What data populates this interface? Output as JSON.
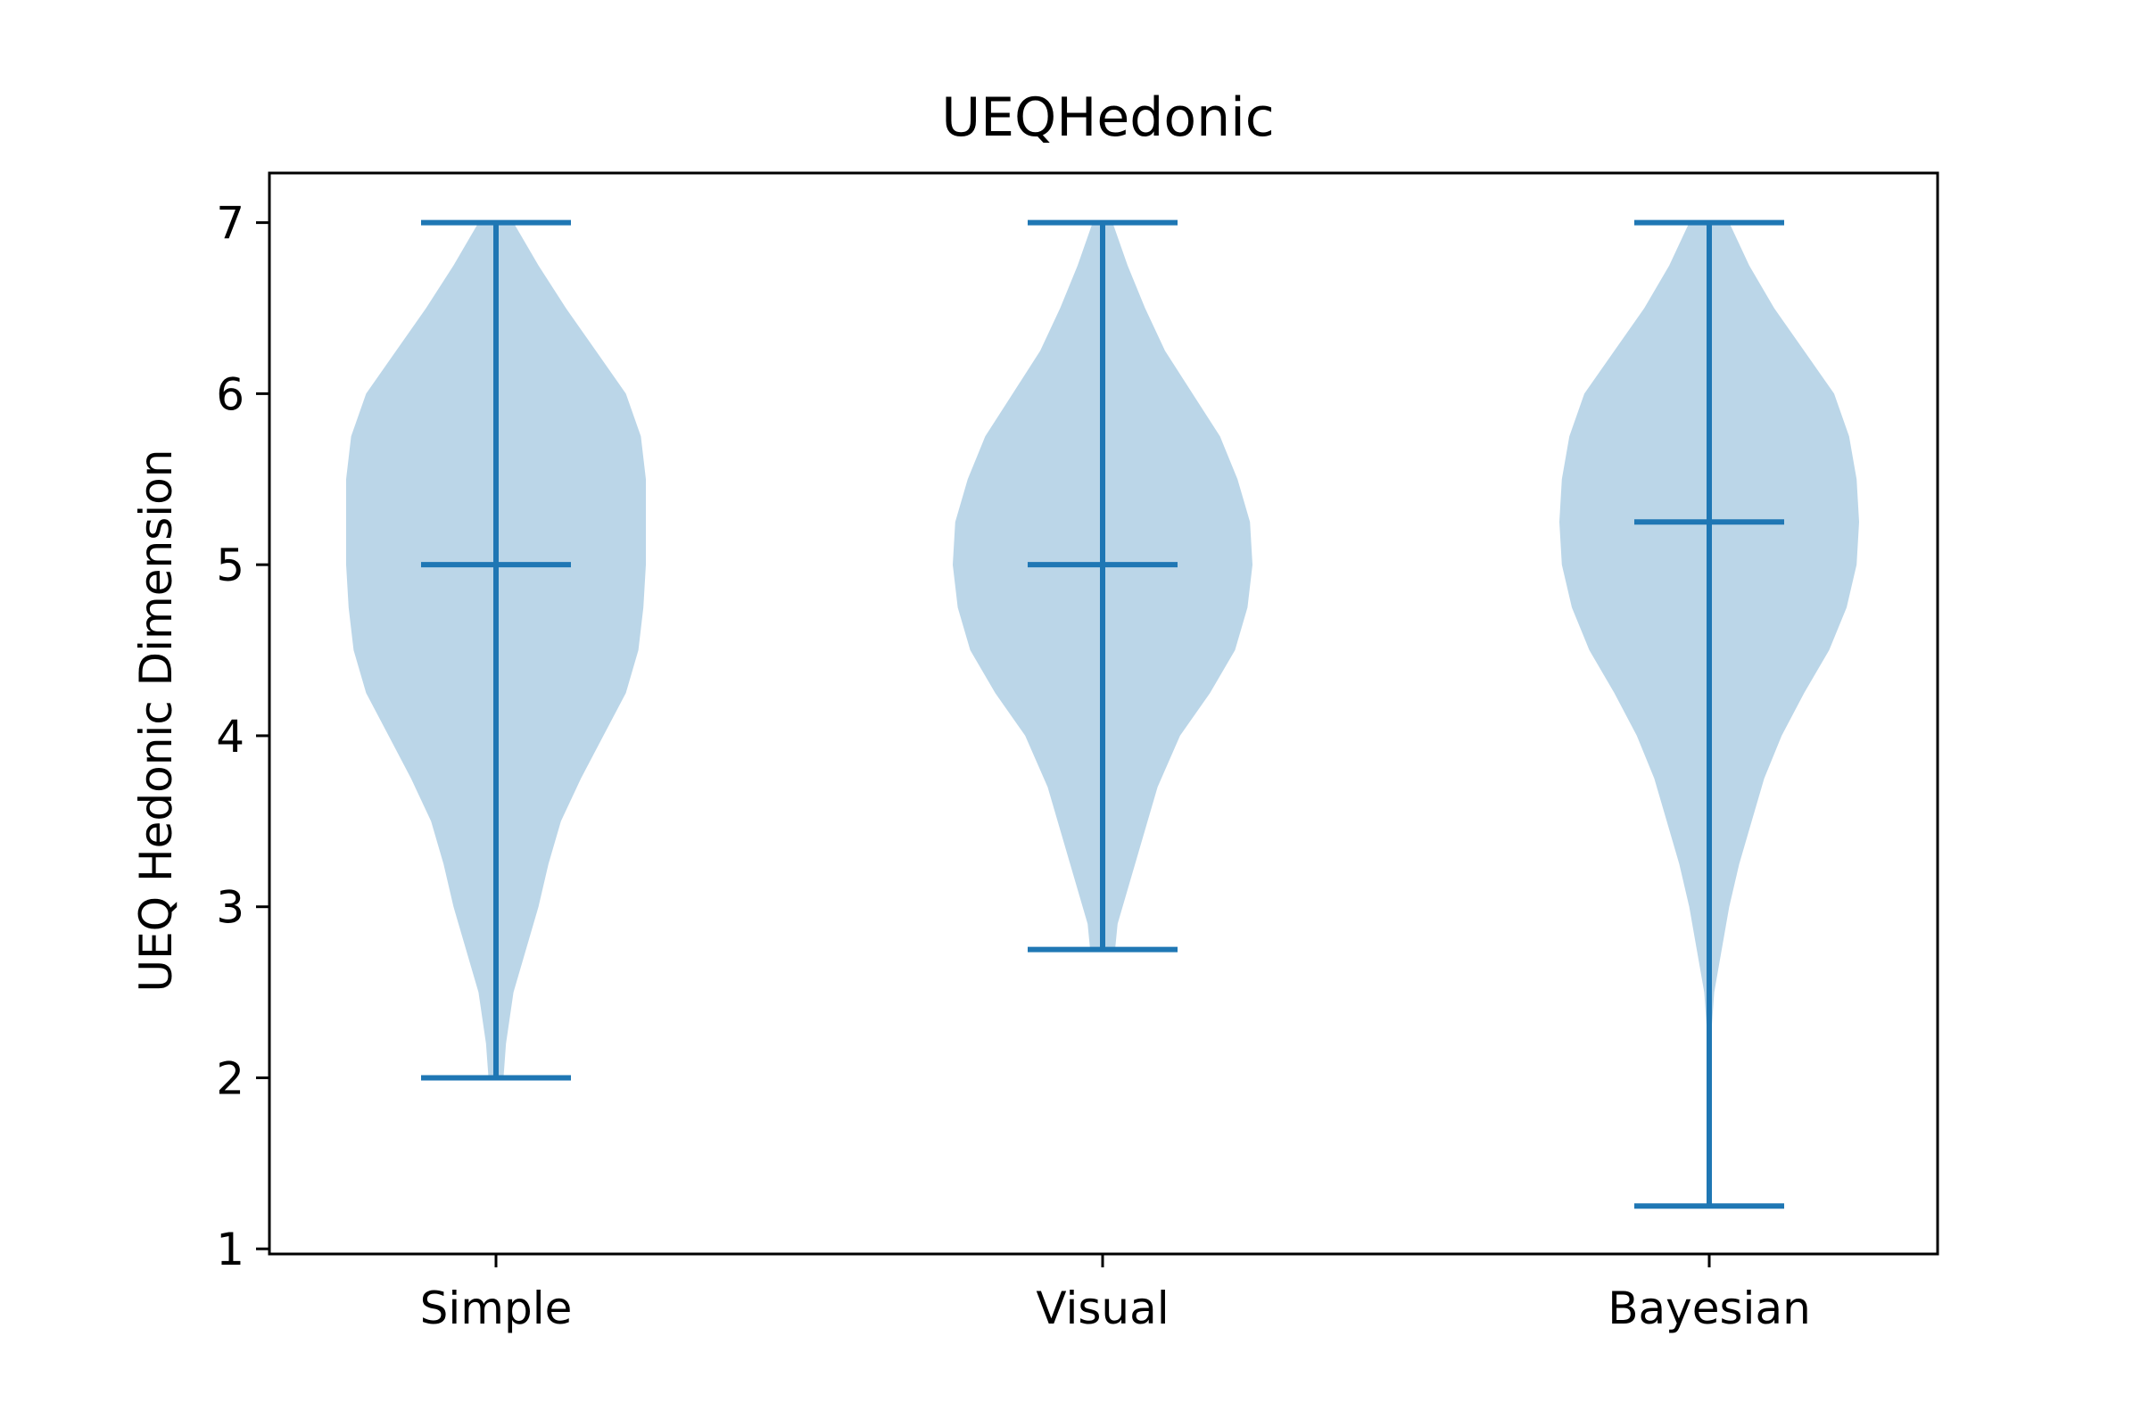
{
  "chart_data": {
    "type": "violin",
    "title": "UEQHedonic",
    "xlabel": "",
    "ylabel": "UEQ Hedonic Dimension",
    "ylim": [
      0.97,
      7.29
    ],
    "yticks": [
      1,
      2,
      3,
      4,
      5,
      6,
      7
    ],
    "categories": [
      "Simple",
      "Visual",
      "Bayesian"
    ],
    "grid": false,
    "colors": {
      "line": "#1f77b4",
      "body": "#1f77b4",
      "body_opacity": 0.3,
      "axes": "#000000"
    },
    "violins": [
      {
        "name": "Simple",
        "min": 2.0,
        "median": 5.0,
        "max": 7.0,
        "density": [
          [
            2.0,
            0.03
          ],
          [
            2.2,
            0.04
          ],
          [
            2.5,
            0.07
          ],
          [
            2.8,
            0.13
          ],
          [
            3.0,
            0.17
          ],
          [
            3.25,
            0.21
          ],
          [
            3.5,
            0.26
          ],
          [
            3.75,
            0.34
          ],
          [
            4.0,
            0.43
          ],
          [
            4.25,
            0.52
          ],
          [
            4.5,
            0.57
          ],
          [
            4.75,
            0.59
          ],
          [
            5.0,
            0.6
          ],
          [
            5.25,
            0.6
          ],
          [
            5.5,
            0.6
          ],
          [
            5.75,
            0.58
          ],
          [
            6.0,
            0.52
          ],
          [
            6.25,
            0.4
          ],
          [
            6.5,
            0.28
          ],
          [
            6.75,
            0.17
          ],
          [
            7.0,
            0.07
          ]
        ]
      },
      {
        "name": "Visual",
        "min": 2.75,
        "median": 5.0,
        "max": 7.0,
        "density": [
          [
            2.75,
            0.05
          ],
          [
            2.9,
            0.06
          ],
          [
            3.1,
            0.1
          ],
          [
            3.4,
            0.16
          ],
          [
            3.7,
            0.22
          ],
          [
            4.0,
            0.31
          ],
          [
            4.25,
            0.43
          ],
          [
            4.5,
            0.53
          ],
          [
            4.75,
            0.58
          ],
          [
            5.0,
            0.6
          ],
          [
            5.25,
            0.59
          ],
          [
            5.5,
            0.54
          ],
          [
            5.75,
            0.47
          ],
          [
            6.0,
            0.36
          ],
          [
            6.25,
            0.25
          ],
          [
            6.5,
            0.17
          ],
          [
            6.75,
            0.1
          ],
          [
            7.0,
            0.04
          ]
        ]
      },
      {
        "name": "Bayesian",
        "min": 1.25,
        "median": 5.25,
        "max": 7.0,
        "density": [
          [
            1.25,
            0.005
          ],
          [
            1.75,
            0.005
          ],
          [
            2.25,
            0.008
          ],
          [
            2.5,
            0.02
          ],
          [
            2.75,
            0.05
          ],
          [
            3.0,
            0.08
          ],
          [
            3.25,
            0.12
          ],
          [
            3.5,
            0.17
          ],
          [
            3.75,
            0.22
          ],
          [
            4.0,
            0.29
          ],
          [
            4.25,
            0.38
          ],
          [
            4.5,
            0.48
          ],
          [
            4.75,
            0.55
          ],
          [
            5.0,
            0.59
          ],
          [
            5.25,
            0.6
          ],
          [
            5.5,
            0.59
          ],
          [
            5.75,
            0.56
          ],
          [
            6.0,
            0.5
          ],
          [
            6.25,
            0.38
          ],
          [
            6.5,
            0.26
          ],
          [
            6.75,
            0.16
          ],
          [
            7.0,
            0.08
          ]
        ]
      }
    ]
  }
}
